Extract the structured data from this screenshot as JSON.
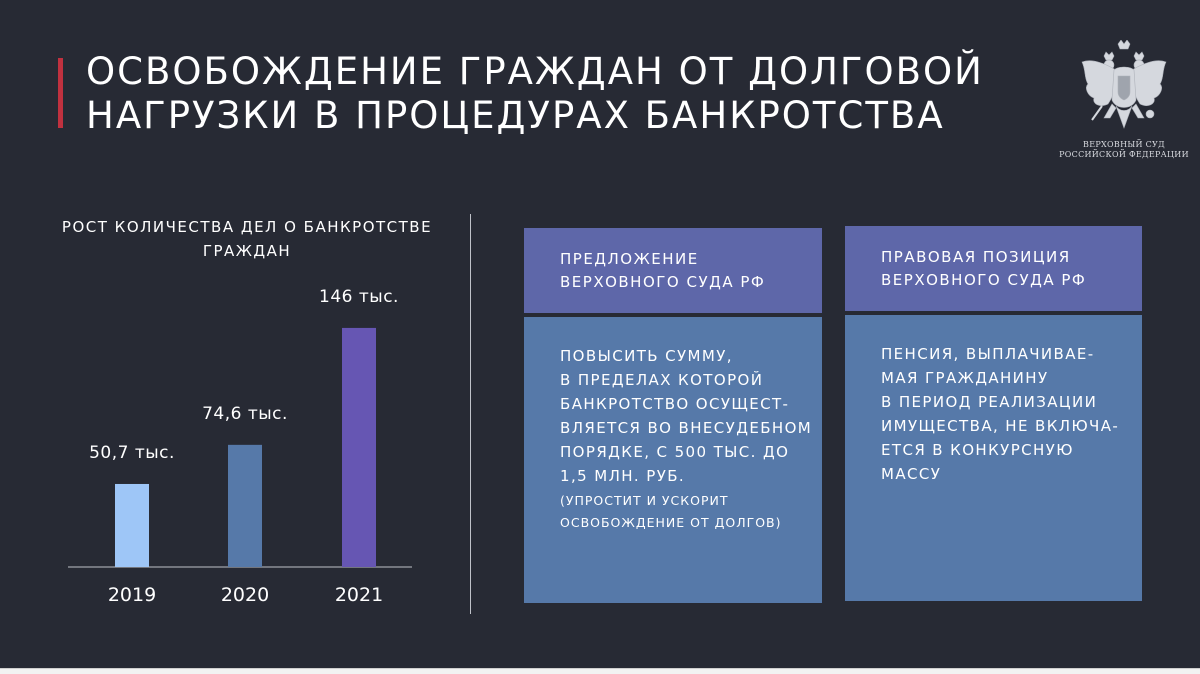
{
  "slide": {
    "title_lines": [
      "ОСВОБОЖДЕНИЕ ГРАЖДАН ОТ ДОЛГОВОЙ",
      "НАГРУЗКИ В ПРОЦЕДУРАХ БАНКРОТСТВА"
    ],
    "emblem_caption_lines": [
      "ВЕРХОВНЫЙ СУД",
      "РОССИЙСКОЙ ФЕДЕРАЦИИ"
    ]
  },
  "chart_data": {
    "type": "bar",
    "title_lines": [
      "РОСТ КОЛИЧЕСТВА ДЕЛ О БАНКРОТСТВЕ",
      "ГРАЖДАН"
    ],
    "categories": [
      "2019",
      "2020",
      "2021"
    ],
    "values": [
      50.7,
      74.6,
      146
    ],
    "data_labels": [
      "50,7 тыс.",
      "74,6 тыс.",
      "146 тыс."
    ],
    "colors": [
      "#9ec6f7",
      "#5679a9",
      "#6656b3"
    ],
    "ylim": [
      0,
      160
    ],
    "grid": false,
    "legend": "none"
  },
  "columns": [
    {
      "header_lines": [
        "ПРЕДЛОЖЕНИЕ",
        "ВЕРХОВНОГО СУДА РФ"
      ],
      "body_lines": [
        "ПОВЫСИТЬ СУММУ,",
        "В ПРЕДЕЛАХ КОТОРОЙ",
        "БАНКРОТСТВО ОСУЩЕСТ-",
        "ВЛЯЕТСЯ ВО ВНЕСУДЕБНОМ",
        "ПОРЯДКЕ, С 500 ТЫС. ДО",
        "1,5 МЛН. РУБ."
      ],
      "note_lines": [
        "(УПРОСТИТ И УСКОРИТ",
        "ОСВОБОЖДЕНИЕ ОТ ДОЛГОВ)"
      ]
    },
    {
      "header_lines": [
        "ПРАВОВАЯ ПОЗИЦИЯ",
        "ВЕРХОВНОГО СУДА РФ"
      ],
      "body_lines": [
        "ПЕНСИЯ, ВЫПЛАЧИВАЕ-",
        "МАЯ ГРАЖДАНИНУ",
        "В ПЕРИОД РЕАЛИЗАЦИИ",
        "ИМУЩЕСТВА, НЕ ВКЛЮЧА-",
        "ЕТСЯ В КОНКУРСНУЮ",
        "МАССУ"
      ],
      "note_lines": []
    }
  ],
  "colors": {
    "background": "#272a34",
    "title_accent": "#c0313f",
    "header_fill": "#5e67a9",
    "body_fill": "#5679a9"
  },
  "icons": [
    "double-headed-eagle-emblem-icon"
  ]
}
